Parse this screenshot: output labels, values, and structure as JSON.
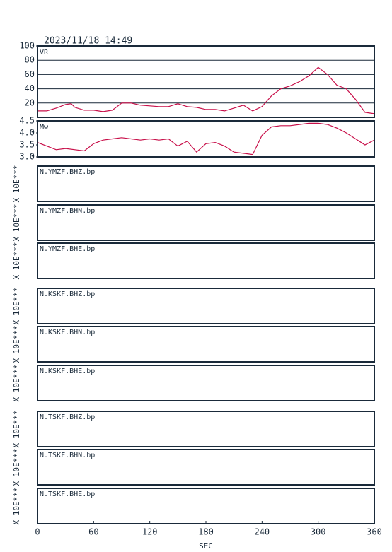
{
  "timestamp": "2023/11/18 14:49",
  "x_axis": {
    "label": "SEC",
    "lim": [
      0,
      360
    ],
    "ticks": [
      0,
      60,
      120,
      180,
      240,
      300,
      360
    ]
  },
  "chart_data": [
    {
      "type": "line",
      "title": "VR",
      "color": "#c8104a",
      "grid": true,
      "x": [
        0,
        10,
        20,
        30,
        36,
        40,
        50,
        60,
        70,
        80,
        90,
        100,
        110,
        120,
        130,
        140,
        150,
        160,
        170,
        180,
        190,
        200,
        210,
        220,
        230,
        240,
        250,
        260,
        270,
        280,
        290,
        300,
        310,
        320,
        330,
        340,
        350,
        360
      ],
      "values": [
        9,
        9,
        13,
        18,
        19,
        14,
        10,
        10,
        8,
        10,
        20,
        20,
        17,
        16,
        15,
        15,
        19,
        15,
        14,
        11,
        11,
        9,
        13,
        17,
        9,
        15,
        30,
        40,
        44,
        50,
        58,
        70,
        60,
        45,
        40,
        25,
        7,
        5
      ],
      "ylim": [
        0,
        100
      ],
      "yticks": [
        20,
        40,
        60,
        80,
        100
      ]
    },
    {
      "type": "line",
      "title": "Mw",
      "color": "#c8104a",
      "grid": false,
      "x": [
        0,
        10,
        20,
        30,
        40,
        50,
        60,
        70,
        80,
        90,
        100,
        110,
        120,
        130,
        140,
        150,
        160,
        170,
        180,
        190,
        200,
        210,
        220,
        230,
        240,
        250,
        260,
        270,
        280,
        290,
        300,
        310,
        320,
        330,
        340,
        350,
        360
      ],
      "values": [
        3.6,
        3.45,
        3.3,
        3.35,
        3.3,
        3.25,
        3.55,
        3.7,
        3.75,
        3.8,
        3.75,
        3.7,
        3.75,
        3.7,
        3.75,
        3.45,
        3.65,
        3.2,
        3.55,
        3.6,
        3.45,
        3.2,
        3.15,
        3.1,
        3.9,
        4.25,
        4.3,
        4.3,
        4.35,
        4.4,
        4.4,
        4.35,
        4.2,
        4.0,
        3.75,
        3.5,
        3.7
      ],
      "ylim": [
        3.0,
        4.5
      ],
      "yticks": [
        {
          "value": 3.0,
          "label": "3.0"
        },
        3.5,
        {
          "value": 4.0,
          "label": "4.0"
        },
        3.5,
        4.5
      ]
    }
  ],
  "traces": [
    {
      "label": "N.YMZF.BHZ.bp",
      "scale": "X 10E***"
    },
    {
      "label": "N.YMZF.BHN.bp",
      "scale": "X 10E***"
    },
    {
      "label": "N.YMZF.BHE.bp",
      "scale": "X 10E***"
    },
    {
      "label": "N.KSKF.BHZ.bp",
      "scale": "X 10E***"
    },
    {
      "label": "N.KSKF.BHN.bp",
      "scale": "X 10E***"
    },
    {
      "label": "N.KSKF.BHE.bp",
      "scale": "X 10E***"
    },
    {
      "label": "N.TSKF.BHZ.bp",
      "scale": "X 10E***"
    },
    {
      "label": "N.TSKF.BHN.bp",
      "scale": "X 10E***"
    },
    {
      "label": "N.TSKF.BHE.bp",
      "scale": "X 10E***"
    }
  ]
}
